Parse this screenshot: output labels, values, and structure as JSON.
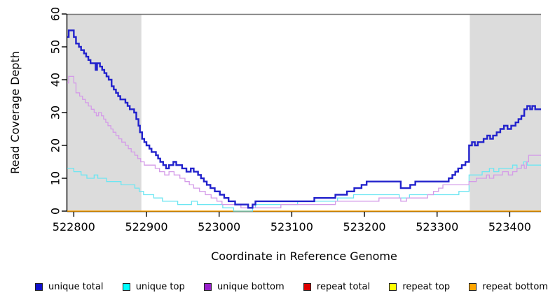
{
  "chart_data": {
    "type": "line",
    "subtype": "step-after",
    "title": "",
    "xlabel": "Coordinate in Reference Genome",
    "ylabel": "Read Coverage Depth",
    "xlim": [
      522791,
      523443
    ],
    "ylim": [
      0,
      60
    ],
    "x_ticks": [
      522800,
      522900,
      523000,
      523100,
      523200,
      523300,
      523400
    ],
    "y_ticks": [
      0,
      10,
      20,
      30,
      40,
      50,
      60
    ],
    "grid": false,
    "legend_position": "bottom",
    "axis_color": "#000000",
    "frame_top_color": "#777777",
    "shaded_regions": [
      {
        "x0": 522791,
        "x1": 522893,
        "color": "#DCDCDC"
      },
      {
        "x0": 523345,
        "x1": 523443,
        "color": "#DCDCDC"
      }
    ],
    "draw_order": [
      3,
      4,
      5,
      1,
      2,
      0
    ],
    "series": [
      {
        "name": "unique total",
        "line_color": "#2222CC",
        "legend_color": "#1111CC",
        "line_width": 2.4,
        "points": [
          [
            522791,
            53
          ],
          [
            522793,
            55
          ],
          [
            522800,
            53
          ],
          [
            522803,
            51
          ],
          [
            522807,
            50
          ],
          [
            522810,
            49
          ],
          [
            522814,
            48
          ],
          [
            522817,
            47
          ],
          [
            522820,
            46
          ],
          [
            522823,
            45
          ],
          [
            522830,
            43
          ],
          [
            522832,
            45
          ],
          [
            522836,
            44
          ],
          [
            522839,
            43
          ],
          [
            522842,
            42
          ],
          [
            522845,
            41
          ],
          [
            522848,
            40
          ],
          [
            522852,
            38
          ],
          [
            522855,
            37
          ],
          [
            522858,
            36
          ],
          [
            522861,
            35
          ],
          [
            522864,
            34
          ],
          [
            522871,
            33
          ],
          [
            522874,
            32
          ],
          [
            522877,
            31
          ],
          [
            522883,
            30
          ],
          [
            522886,
            28
          ],
          [
            522889,
            26
          ],
          [
            522891,
            24
          ],
          [
            522894,
            22
          ],
          [
            522897,
            21
          ],
          [
            522900,
            20
          ],
          [
            522904,
            19
          ],
          [
            522907,
            18
          ],
          [
            522913,
            17
          ],
          [
            522916,
            16
          ],
          [
            522919,
            15
          ],
          [
            522923,
            14
          ],
          [
            522927,
            13
          ],
          [
            522931,
            14
          ],
          [
            522937,
            15
          ],
          [
            522941,
            14
          ],
          [
            522949,
            13
          ],
          [
            522955,
            12
          ],
          [
            522961,
            13
          ],
          [
            522965,
            12
          ],
          [
            522971,
            11
          ],
          [
            522975,
            10
          ],
          [
            522979,
            9
          ],
          [
            522983,
            8
          ],
          [
            522988,
            7
          ],
          [
            522994,
            6
          ],
          [
            523001,
            5
          ],
          [
            523007,
            4
          ],
          [
            523013,
            3
          ],
          [
            523022,
            2
          ],
          [
            523040,
            1
          ],
          [
            523046,
            2
          ],
          [
            523050,
            3
          ],
          [
            523131,
            4
          ],
          [
            523160,
            5
          ],
          [
            523176,
            6
          ],
          [
            523186,
            7
          ],
          [
            523196,
            8
          ],
          [
            523203,
            9
          ],
          [
            523250,
            7
          ],
          [
            523263,
            8
          ],
          [
            523270,
            9
          ],
          [
            523316,
            10
          ],
          [
            523321,
            11
          ],
          [
            523325,
            12
          ],
          [
            523329,
            13
          ],
          [
            523334,
            14
          ],
          [
            523339,
            15
          ],
          [
            523344,
            20
          ],
          [
            523348,
            21
          ],
          [
            523352,
            20
          ],
          [
            523356,
            21
          ],
          [
            523364,
            22
          ],
          [
            523369,
            23
          ],
          [
            523373,
            22
          ],
          [
            523377,
            23
          ],
          [
            523382,
            24
          ],
          [
            523387,
            25
          ],
          [
            523392,
            26
          ],
          [
            523397,
            25
          ],
          [
            523402,
            26
          ],
          [
            523408,
            27
          ],
          [
            523412,
            28
          ],
          [
            523416,
            29
          ],
          [
            523420,
            31
          ],
          [
            523424,
            32
          ],
          [
            523428,
            31
          ],
          [
            523431,
            32
          ],
          [
            523435,
            31
          ],
          [
            523443,
            31
          ]
        ]
      },
      {
        "name": "unique top",
        "line_color": "#6CE6F2",
        "legend_color": "#00FFFF",
        "line_width": 1.3,
        "points": [
          [
            522791,
            13
          ],
          [
            522800,
            12
          ],
          [
            522810,
            11
          ],
          [
            522818,
            10
          ],
          [
            522828,
            11
          ],
          [
            522833,
            10
          ],
          [
            522845,
            9
          ],
          [
            522865,
            8
          ],
          [
            522884,
            7
          ],
          [
            522890,
            6
          ],
          [
            522896,
            5
          ],
          [
            522910,
            4
          ],
          [
            522922,
            3
          ],
          [
            522943,
            2
          ],
          [
            522962,
            3
          ],
          [
            522970,
            2
          ],
          [
            523005,
            1
          ],
          [
            523020,
            0
          ],
          [
            523046,
            1
          ],
          [
            523050,
            2
          ],
          [
            523108,
            3
          ],
          [
            523163,
            4
          ],
          [
            523185,
            5
          ],
          [
            523248,
            4
          ],
          [
            523262,
            5
          ],
          [
            523330,
            6
          ],
          [
            523344,
            11
          ],
          [
            523362,
            12
          ],
          [
            523372,
            13
          ],
          [
            523378,
            12
          ],
          [
            523385,
            13
          ],
          [
            523404,
            14
          ],
          [
            523410,
            13
          ],
          [
            523416,
            14
          ],
          [
            523419,
            15
          ],
          [
            523424,
            14
          ],
          [
            523443,
            14
          ]
        ]
      },
      {
        "name": "unique bottom",
        "line_color": "#D49BE8",
        "legend_color": "#9920CC",
        "line_width": 1.3,
        "points": [
          [
            522791,
            39
          ],
          [
            522793,
            41
          ],
          [
            522800,
            39
          ],
          [
            522803,
            36
          ],
          [
            522808,
            35
          ],
          [
            522812,
            34
          ],
          [
            522816,
            33
          ],
          [
            522820,
            32
          ],
          [
            522824,
            31
          ],
          [
            522828,
            30
          ],
          [
            522831,
            29
          ],
          [
            522834,
            30
          ],
          [
            522838,
            29
          ],
          [
            522841,
            28
          ],
          [
            522844,
            27
          ],
          [
            522847,
            26
          ],
          [
            522851,
            25
          ],
          [
            522854,
            24
          ],
          [
            522858,
            23
          ],
          [
            522862,
            22
          ],
          [
            522866,
            21
          ],
          [
            522871,
            20
          ],
          [
            522875,
            19
          ],
          [
            522879,
            18
          ],
          [
            522884,
            17
          ],
          [
            522888,
            16
          ],
          [
            522892,
            15
          ],
          [
            522897,
            14
          ],
          [
            522912,
            13
          ],
          [
            522918,
            12
          ],
          [
            522925,
            11
          ],
          [
            522931,
            12
          ],
          [
            522938,
            11
          ],
          [
            522946,
            10
          ],
          [
            522953,
            9
          ],
          [
            522959,
            8
          ],
          [
            522965,
            7
          ],
          [
            522973,
            6
          ],
          [
            522981,
            5
          ],
          [
            522989,
            4
          ],
          [
            522997,
            3
          ],
          [
            523004,
            2
          ],
          [
            523030,
            1
          ],
          [
            523085,
            2
          ],
          [
            523160,
            3
          ],
          [
            523220,
            4
          ],
          [
            523250,
            3
          ],
          [
            523258,
            4
          ],
          [
            523287,
            5
          ],
          [
            523295,
            6
          ],
          [
            523302,
            7
          ],
          [
            523308,
            8
          ],
          [
            523344,
            9
          ],
          [
            523354,
            10
          ],
          [
            523368,
            11
          ],
          [
            523372,
            10
          ],
          [
            523378,
            11
          ],
          [
            523390,
            12
          ],
          [
            523398,
            11
          ],
          [
            523404,
            12
          ],
          [
            523410,
            13
          ],
          [
            523416,
            14
          ],
          [
            523420,
            13
          ],
          [
            523423,
            15
          ],
          [
            523426,
            17
          ],
          [
            523443,
            17
          ]
        ]
      },
      {
        "name": "repeat total",
        "line_color": "#DD0000",
        "legend_color": "#DD0000",
        "line_width": 1.3,
        "points": [
          [
            522791,
            0
          ],
          [
            523443,
            0
          ]
        ]
      },
      {
        "name": "repeat top",
        "line_color": "#FFFF00",
        "legend_color": "#FFFF00",
        "line_width": 1.3,
        "points": [
          [
            522791,
            0
          ],
          [
            523443,
            0
          ]
        ]
      },
      {
        "name": "repeat bottom",
        "line_color": "#FFA500",
        "legend_color": "#FFA500",
        "line_width": 1.3,
        "points": [
          [
            522791,
            0
          ],
          [
            523443,
            0
          ]
        ]
      }
    ]
  }
}
